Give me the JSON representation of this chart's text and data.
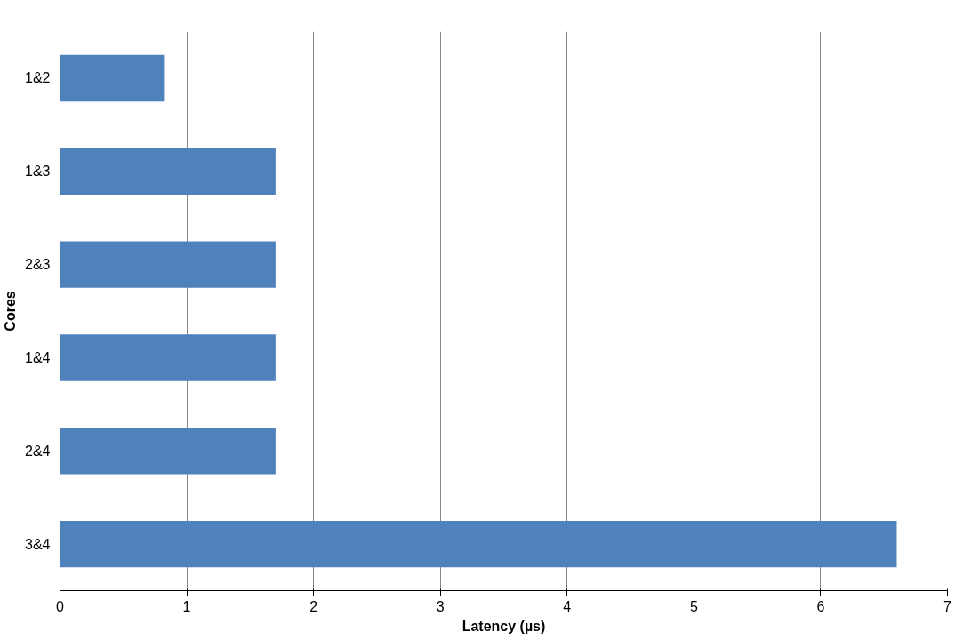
{
  "chart_data": {
    "type": "bar",
    "orientation": "horizontal",
    "xlabel": "Latency (µs)",
    "ylabel": "Cores",
    "categories": [
      "1&2",
      "1&3",
      "2&3",
      "1&4",
      "2&4",
      "3&4"
    ],
    "values": [
      0.82,
      1.7,
      1.7,
      1.7,
      1.7,
      6.6
    ],
    "color": "#4f81bd",
    "xlim": [
      0,
      7
    ],
    "xticks": [
      0,
      1,
      2,
      3,
      4,
      5,
      6,
      7
    ],
    "grid": "x"
  }
}
